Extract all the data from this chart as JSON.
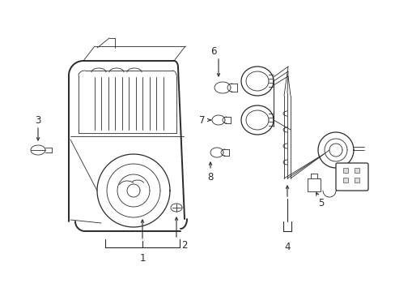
{
  "bg_color": "#ffffff",
  "lc": "#2a2a2a",
  "lw": 0.9,
  "lw_thick": 1.4,
  "lw_thin": 0.6,
  "fig_w": 4.89,
  "fig_h": 3.6,
  "dpi": 100
}
